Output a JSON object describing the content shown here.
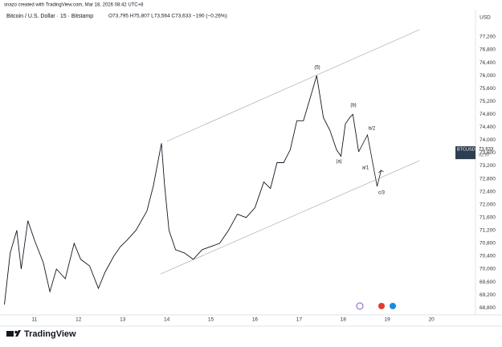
{
  "header": {
    "credit": "snazo created with TradingView.com, Mar 18, 2026 08:42 UTC+8",
    "symbol": "Bitcoin / U.S. Dollar · 15 · Bitstamp",
    "ohlc": "O73,795 H75,807 L73,564 C73,633 −190 (−0.26%)",
    "brand": "TradingView"
  },
  "chart_data": {
    "type": "line",
    "currency": "USD",
    "last_price": {
      "symbol": "BTCUSD",
      "value": 73633,
      "label": "73,633",
      "countdown": "02:07"
    },
    "xlim": [
      10.31,
      21.0
    ],
    "xticks": [
      11,
      12,
      13,
      14,
      15,
      16,
      17,
      18,
      19,
      20
    ],
    "ylim": [
      68630,
      77970
    ],
    "yticks": [
      {
        "value": 68800,
        "label": "68,800"
      },
      {
        "value": 69200,
        "label": "69,200"
      },
      {
        "value": 69600,
        "label": "69,600"
      },
      {
        "value": 70000,
        "label": "70,000"
      },
      {
        "value": 70400,
        "label": "70,400"
      },
      {
        "value": 70800,
        "label": "70,800"
      },
      {
        "value": 71200,
        "label": "71,200"
      },
      {
        "value": 71600,
        "label": "71,600"
      },
      {
        "value": 72000,
        "label": "72,000"
      },
      {
        "value": 72400,
        "label": "72,400"
      },
      {
        "value": 72800,
        "label": "72,800"
      },
      {
        "value": 73200,
        "label": "73,200"
      },
      {
        "value": 73600,
        "label": "73,600"
      },
      {
        "value": 74000,
        "label": "74,000"
      },
      {
        "value": 74400,
        "label": "74,400"
      },
      {
        "value": 74800,
        "label": "74,800"
      },
      {
        "value": 75200,
        "label": "75,200"
      },
      {
        "value": 75600,
        "label": "75,600"
      },
      {
        "value": 76000,
        "label": "76,000"
      },
      {
        "value": 76400,
        "label": "76,400"
      },
      {
        "value": 76800,
        "label": "76,800"
      },
      {
        "value": 77200,
        "label": "77,200"
      }
    ],
    "series": [
      {
        "color": "#131722",
        "width": 0.9,
        "x": [
          10.32,
          10.45,
          10.6,
          10.7,
          10.85,
          11.0,
          11.2,
          11.35,
          11.5,
          11.7,
          11.9,
          12.05,
          12.25,
          12.45,
          12.6,
          12.8,
          12.95,
          13.1,
          13.3,
          13.55,
          13.7,
          13.88,
          13.95,
          14.05,
          14.2,
          14.4,
          14.6,
          14.8,
          15.0,
          15.2,
          15.4,
          15.6,
          15.8,
          16.0,
          16.2,
          16.35,
          16.5,
          16.65,
          16.8,
          16.95,
          17.1,
          17.25,
          17.4,
          17.55,
          17.7,
          17.85,
          17.95,
          18.05,
          18.15,
          18.22,
          18.3,
          18.35
        ],
        "values": [
          68900,
          70500,
          71200,
          70000,
          71500,
          70900,
          70200,
          69300,
          70000,
          69700,
          70800,
          70300,
          70100,
          69400,
          69900,
          70400,
          70700,
          70900,
          71200,
          71800,
          72600,
          73900,
          72600,
          71200,
          70600,
          70500,
          70300,
          70600,
          70700,
          70800,
          71200,
          71700,
          71600,
          71900,
          72700,
          72500,
          73300,
          73300,
          73700,
          74600,
          74600,
          75300,
          76000,
          74700,
          74300,
          73700,
          73500,
          74500,
          74700,
          74800,
          74100,
          73633
        ]
      },
      {
        "color": "#131722",
        "width": 0.8,
        "x": [
          18.35,
          18.55,
          18.77,
          18.86
        ],
        "values": [
          73633,
          74160,
          72565,
          73064
        ]
      },
      {
        "color": "#9aa0aa",
        "width": 0.6,
        "x": [
          14.0,
          19.73
        ],
        "values": [
          73960,
          77424
        ]
      },
      {
        "color": "#9aa0aa",
        "width": 0.6,
        "x": [
          13.86,
          19.73
        ],
        "values": [
          69848,
          73362
        ]
      }
    ],
    "annotations": [
      "(5)",
      "(b)",
      "(a)",
      "b/2",
      "a/1",
      "c/3"
    ]
  }
}
